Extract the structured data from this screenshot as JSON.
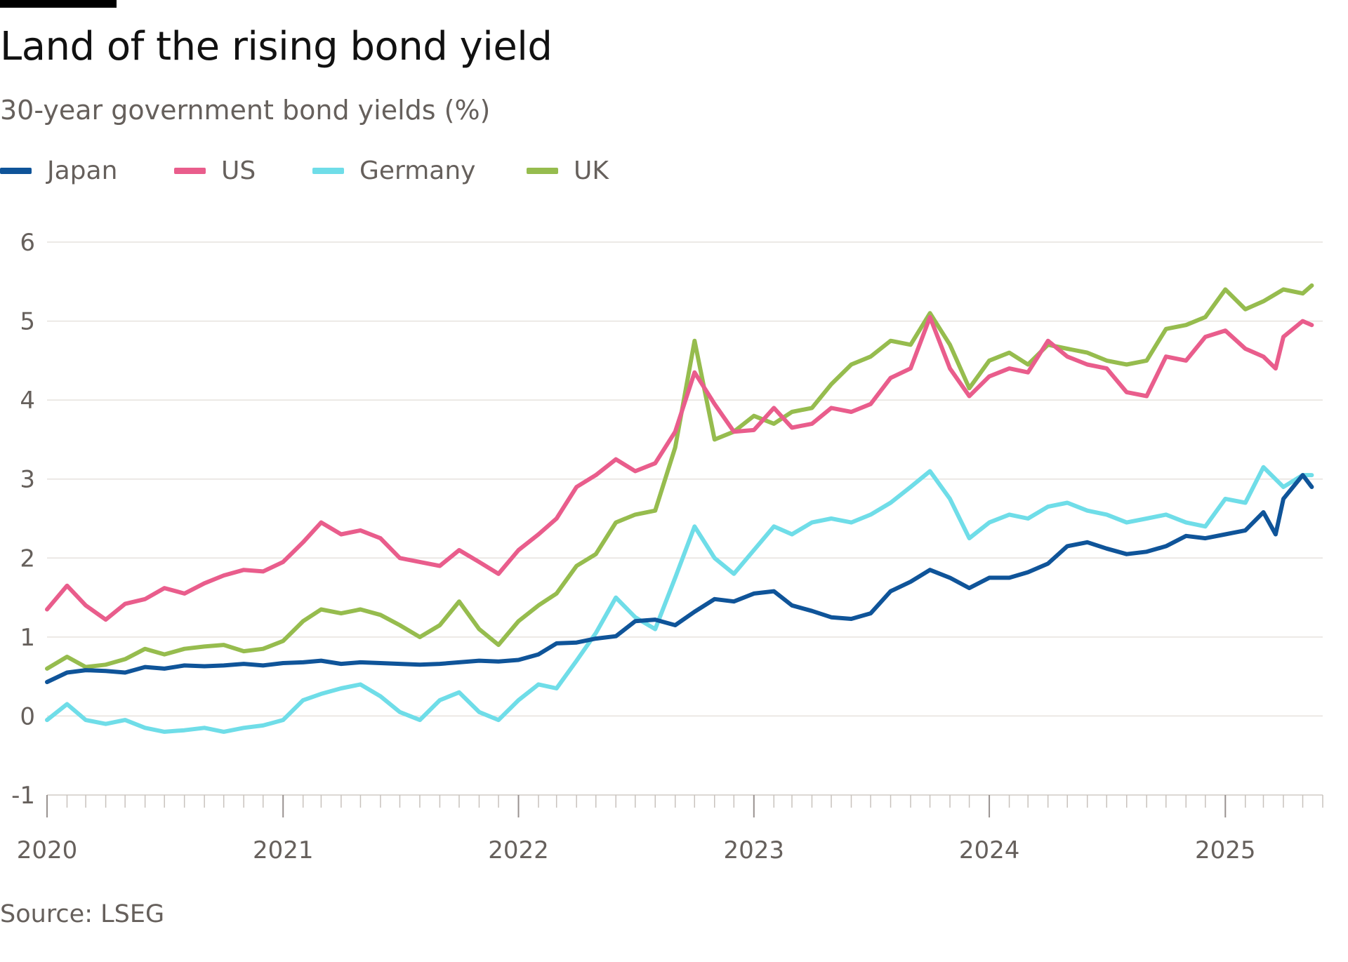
{
  "header": {
    "title": "Land of the rising bond yield",
    "subtitle": "30-year government bond yields (%)"
  },
  "legend": [
    {
      "label": "Japan",
      "color": "#0f5499"
    },
    {
      "label": "US",
      "color": "#e95d8c"
    },
    {
      "label": "Germany",
      "color": "#6fdde8"
    },
    {
      "label": "UK",
      "color": "#96bc4e"
    }
  ],
  "footer": {
    "source": "Source: LSEG"
  },
  "chart_data": {
    "type": "line",
    "title": "Land of the rising bond yield",
    "subtitle": "30-year government bond yields (%)",
    "xlabel": "",
    "ylabel": "",
    "x_range": [
      "2020-01-01",
      "2025-06-01"
    ],
    "x_ticks": [
      "2020",
      "2021",
      "2022",
      "2023",
      "2024",
      "2025"
    ],
    "ylim": [
      -1,
      6
    ],
    "y_ticks": [
      "-1",
      "0",
      "1",
      "2",
      "3",
      "4",
      "5",
      "6"
    ],
    "grid": true,
    "legend_position": "top-left",
    "series": [
      {
        "name": "Japan",
        "color": "#0f5499",
        "points": [
          [
            "2020-01-01",
            0.43
          ],
          [
            "2020-02-01",
            0.55
          ],
          [
            "2020-03-01",
            0.58
          ],
          [
            "2020-04-01",
            0.57
          ],
          [
            "2020-05-01",
            0.55
          ],
          [
            "2020-06-01",
            0.62
          ],
          [
            "2020-07-01",
            0.6
          ],
          [
            "2020-08-01",
            0.64
          ],
          [
            "2020-09-01",
            0.63
          ],
          [
            "2020-10-01",
            0.64
          ],
          [
            "2020-11-01",
            0.66
          ],
          [
            "2020-12-01",
            0.64
          ],
          [
            "2021-01-01",
            0.67
          ],
          [
            "2021-02-01",
            0.68
          ],
          [
            "2021-03-01",
            0.7
          ],
          [
            "2021-04-01",
            0.66
          ],
          [
            "2021-05-01",
            0.68
          ],
          [
            "2021-06-01",
            0.67
          ],
          [
            "2021-07-01",
            0.66
          ],
          [
            "2021-08-01",
            0.65
          ],
          [
            "2021-09-01",
            0.66
          ],
          [
            "2021-10-01",
            0.68
          ],
          [
            "2021-11-01",
            0.7
          ],
          [
            "2021-12-01",
            0.69
          ],
          [
            "2022-01-01",
            0.71
          ],
          [
            "2022-02-01",
            0.78
          ],
          [
            "2022-03-01",
            0.92
          ],
          [
            "2022-04-01",
            0.93
          ],
          [
            "2022-05-01",
            0.98
          ],
          [
            "2022-06-01",
            1.01
          ],
          [
            "2022-07-01",
            1.2
          ],
          [
            "2022-08-01",
            1.22
          ],
          [
            "2022-09-01",
            1.15
          ],
          [
            "2022-10-01",
            1.32
          ],
          [
            "2022-11-01",
            1.48
          ],
          [
            "2022-12-01",
            1.45
          ],
          [
            "2023-01-01",
            1.55
          ],
          [
            "2023-02-01",
            1.58
          ],
          [
            "2023-03-01",
            1.4
          ],
          [
            "2023-04-01",
            1.33
          ],
          [
            "2023-05-01",
            1.25
          ],
          [
            "2023-06-01",
            1.23
          ],
          [
            "2023-07-01",
            1.3
          ],
          [
            "2023-08-01",
            1.58
          ],
          [
            "2023-09-01",
            1.7
          ],
          [
            "2023-10-01",
            1.85
          ],
          [
            "2023-11-01",
            1.75
          ],
          [
            "2023-12-01",
            1.62
          ],
          [
            "2024-01-01",
            1.75
          ],
          [
            "2024-02-01",
            1.75
          ],
          [
            "2024-03-01",
            1.82
          ],
          [
            "2024-04-01",
            1.93
          ],
          [
            "2024-05-01",
            2.15
          ],
          [
            "2024-06-01",
            2.2
          ],
          [
            "2024-07-01",
            2.12
          ],
          [
            "2024-08-01",
            2.05
          ],
          [
            "2024-09-01",
            2.08
          ],
          [
            "2024-10-01",
            2.15
          ],
          [
            "2024-11-01",
            2.28
          ],
          [
            "2024-12-01",
            2.25
          ],
          [
            "2025-01-01",
            2.3
          ],
          [
            "2025-02-01",
            2.35
          ],
          [
            "2025-03-01",
            2.58
          ],
          [
            "2025-03-20",
            2.3
          ],
          [
            "2025-04-01",
            2.75
          ],
          [
            "2025-05-01",
            3.05
          ],
          [
            "2025-05-15",
            2.9
          ]
        ]
      },
      {
        "name": "US",
        "color": "#e95d8c",
        "points": [
          [
            "2020-01-01",
            1.35
          ],
          [
            "2020-02-01",
            1.65
          ],
          [
            "2020-03-01",
            1.4
          ],
          [
            "2020-04-01",
            1.22
          ],
          [
            "2020-05-01",
            1.42
          ],
          [
            "2020-06-01",
            1.48
          ],
          [
            "2020-07-01",
            1.62
          ],
          [
            "2020-08-01",
            1.55
          ],
          [
            "2020-09-01",
            1.68
          ],
          [
            "2020-10-01",
            1.78
          ],
          [
            "2020-11-01",
            1.85
          ],
          [
            "2020-12-01",
            1.83
          ],
          [
            "2021-01-01",
            1.95
          ],
          [
            "2021-02-01",
            2.2
          ],
          [
            "2021-03-01",
            2.45
          ],
          [
            "2021-04-01",
            2.3
          ],
          [
            "2021-05-01",
            2.35
          ],
          [
            "2021-06-01",
            2.25
          ],
          [
            "2021-07-01",
            2.0
          ],
          [
            "2021-08-01",
            1.95
          ],
          [
            "2021-09-01",
            1.9
          ],
          [
            "2021-10-01",
            2.1
          ],
          [
            "2021-11-01",
            1.95
          ],
          [
            "2021-12-01",
            1.8
          ],
          [
            "2022-01-01",
            2.1
          ],
          [
            "2022-02-01",
            2.3
          ],
          [
            "2022-03-01",
            2.5
          ],
          [
            "2022-04-01",
            2.9
          ],
          [
            "2022-05-01",
            3.05
          ],
          [
            "2022-06-01",
            3.25
          ],
          [
            "2022-07-01",
            3.1
          ],
          [
            "2022-08-01",
            3.2
          ],
          [
            "2022-09-01",
            3.6
          ],
          [
            "2022-10-01",
            4.35
          ],
          [
            "2022-11-01",
            3.95
          ],
          [
            "2022-12-01",
            3.6
          ],
          [
            "2023-01-01",
            3.62
          ],
          [
            "2023-02-01",
            3.9
          ],
          [
            "2023-03-01",
            3.65
          ],
          [
            "2023-04-01",
            3.7
          ],
          [
            "2023-05-01",
            3.9
          ],
          [
            "2023-06-01",
            3.85
          ],
          [
            "2023-07-01",
            3.95
          ],
          [
            "2023-08-01",
            4.28
          ],
          [
            "2023-09-01",
            4.4
          ],
          [
            "2023-10-01",
            5.05
          ],
          [
            "2023-11-01",
            4.4
          ],
          [
            "2023-12-01",
            4.05
          ],
          [
            "2024-01-01",
            4.3
          ],
          [
            "2024-02-01",
            4.4
          ],
          [
            "2024-03-01",
            4.35
          ],
          [
            "2024-04-01",
            4.75
          ],
          [
            "2024-05-01",
            4.55
          ],
          [
            "2024-06-01",
            4.45
          ],
          [
            "2024-07-01",
            4.4
          ],
          [
            "2024-08-01",
            4.1
          ],
          [
            "2024-09-01",
            4.05
          ],
          [
            "2024-10-01",
            4.55
          ],
          [
            "2024-11-01",
            4.5
          ],
          [
            "2024-12-01",
            4.8
          ],
          [
            "2025-01-01",
            4.88
          ],
          [
            "2025-02-01",
            4.65
          ],
          [
            "2025-03-01",
            4.55
          ],
          [
            "2025-03-20",
            4.4
          ],
          [
            "2025-04-01",
            4.8
          ],
          [
            "2025-05-01",
            5.0
          ],
          [
            "2025-05-15",
            4.95
          ]
        ]
      },
      {
        "name": "Germany",
        "color": "#6fdde8",
        "points": [
          [
            "2020-01-01",
            -0.05
          ],
          [
            "2020-02-01",
            0.15
          ],
          [
            "2020-03-01",
            -0.05
          ],
          [
            "2020-04-01",
            -0.1
          ],
          [
            "2020-05-01",
            -0.05
          ],
          [
            "2020-06-01",
            -0.15
          ],
          [
            "2020-07-01",
            -0.2
          ],
          [
            "2020-08-01",
            -0.18
          ],
          [
            "2020-09-01",
            -0.15
          ],
          [
            "2020-10-01",
            -0.2
          ],
          [
            "2020-11-01",
            -0.15
          ],
          [
            "2020-12-01",
            -0.12
          ],
          [
            "2021-01-01",
            -0.05
          ],
          [
            "2021-02-01",
            0.2
          ],
          [
            "2021-03-01",
            0.28
          ],
          [
            "2021-04-01",
            0.35
          ],
          [
            "2021-05-01",
            0.4
          ],
          [
            "2021-06-01",
            0.25
          ],
          [
            "2021-07-01",
            0.05
          ],
          [
            "2021-08-01",
            -0.05
          ],
          [
            "2021-09-01",
            0.2
          ],
          [
            "2021-10-01",
            0.3
          ],
          [
            "2021-11-01",
            0.05
          ],
          [
            "2021-12-01",
            -0.05
          ],
          [
            "2022-01-01",
            0.2
          ],
          [
            "2022-02-01",
            0.4
          ],
          [
            "2022-03-01",
            0.35
          ],
          [
            "2022-04-01",
            0.7
          ],
          [
            "2022-05-01",
            1.05
          ],
          [
            "2022-06-01",
            1.5
          ],
          [
            "2022-07-01",
            1.25
          ],
          [
            "2022-08-01",
            1.1
          ],
          [
            "2022-09-01",
            1.75
          ],
          [
            "2022-10-01",
            2.4
          ],
          [
            "2022-11-01",
            2.0
          ],
          [
            "2022-12-01",
            1.8
          ],
          [
            "2023-01-01",
            2.1
          ],
          [
            "2023-02-01",
            2.4
          ],
          [
            "2023-03-01",
            2.3
          ],
          [
            "2023-04-01",
            2.45
          ],
          [
            "2023-05-01",
            2.5
          ],
          [
            "2023-06-01",
            2.45
          ],
          [
            "2023-07-01",
            2.55
          ],
          [
            "2023-08-01",
            2.7
          ],
          [
            "2023-09-01",
            2.9
          ],
          [
            "2023-10-01",
            3.1
          ],
          [
            "2023-11-01",
            2.75
          ],
          [
            "2023-12-01",
            2.25
          ],
          [
            "2024-01-01",
            2.45
          ],
          [
            "2024-02-01",
            2.55
          ],
          [
            "2024-03-01",
            2.5
          ],
          [
            "2024-04-01",
            2.65
          ],
          [
            "2024-05-01",
            2.7
          ],
          [
            "2024-06-01",
            2.6
          ],
          [
            "2024-07-01",
            2.55
          ],
          [
            "2024-08-01",
            2.45
          ],
          [
            "2024-09-01",
            2.5
          ],
          [
            "2024-10-01",
            2.55
          ],
          [
            "2024-11-01",
            2.45
          ],
          [
            "2024-12-01",
            2.4
          ],
          [
            "2025-01-01",
            2.75
          ],
          [
            "2025-02-01",
            2.7
          ],
          [
            "2025-03-01",
            3.15
          ],
          [
            "2025-04-01",
            2.9
          ],
          [
            "2025-05-01",
            3.05
          ],
          [
            "2025-05-15",
            3.05
          ]
        ]
      },
      {
        "name": "UK",
        "color": "#96bc4e",
        "points": [
          [
            "2020-01-01",
            0.6
          ],
          [
            "2020-02-01",
            0.75
          ],
          [
            "2020-03-01",
            0.62
          ],
          [
            "2020-04-01",
            0.65
          ],
          [
            "2020-05-01",
            0.72
          ],
          [
            "2020-06-01",
            0.85
          ],
          [
            "2020-07-01",
            0.78
          ],
          [
            "2020-08-01",
            0.85
          ],
          [
            "2020-09-01",
            0.88
          ],
          [
            "2020-10-01",
            0.9
          ],
          [
            "2020-11-01",
            0.82
          ],
          [
            "2020-12-01",
            0.85
          ],
          [
            "2021-01-01",
            0.95
          ],
          [
            "2021-02-01",
            1.2
          ],
          [
            "2021-03-01",
            1.35
          ],
          [
            "2021-04-01",
            1.3
          ],
          [
            "2021-05-01",
            1.35
          ],
          [
            "2021-06-01",
            1.28
          ],
          [
            "2021-07-01",
            1.15
          ],
          [
            "2021-08-01",
            1.0
          ],
          [
            "2021-09-01",
            1.15
          ],
          [
            "2021-10-01",
            1.45
          ],
          [
            "2021-11-01",
            1.1
          ],
          [
            "2021-12-01",
            0.9
          ],
          [
            "2022-01-01",
            1.2
          ],
          [
            "2022-02-01",
            1.4
          ],
          [
            "2022-03-01",
            1.55
          ],
          [
            "2022-04-01",
            1.9
          ],
          [
            "2022-05-01",
            2.05
          ],
          [
            "2022-06-01",
            2.45
          ],
          [
            "2022-07-01",
            2.55
          ],
          [
            "2022-08-01",
            2.6
          ],
          [
            "2022-09-01",
            3.4
          ],
          [
            "2022-10-01",
            4.75
          ],
          [
            "2022-11-01",
            3.5
          ],
          [
            "2022-12-01",
            3.6
          ],
          [
            "2023-01-01",
            3.8
          ],
          [
            "2023-02-01",
            3.7
          ],
          [
            "2023-03-01",
            3.85
          ],
          [
            "2023-04-01",
            3.9
          ],
          [
            "2023-05-01",
            4.2
          ],
          [
            "2023-06-01",
            4.45
          ],
          [
            "2023-07-01",
            4.55
          ],
          [
            "2023-08-01",
            4.75
          ],
          [
            "2023-09-01",
            4.7
          ],
          [
            "2023-10-01",
            5.1
          ],
          [
            "2023-11-01",
            4.7
          ],
          [
            "2023-12-01",
            4.15
          ],
          [
            "2024-01-01",
            4.5
          ],
          [
            "2024-02-01",
            4.6
          ],
          [
            "2024-03-01",
            4.45
          ],
          [
            "2024-04-01",
            4.7
          ],
          [
            "2024-05-01",
            4.65
          ],
          [
            "2024-06-01",
            4.6
          ],
          [
            "2024-07-01",
            4.5
          ],
          [
            "2024-08-01",
            4.45
          ],
          [
            "2024-09-01",
            4.5
          ],
          [
            "2024-10-01",
            4.9
          ],
          [
            "2024-11-01",
            4.95
          ],
          [
            "2024-12-01",
            5.05
          ],
          [
            "2025-01-01",
            5.4
          ],
          [
            "2025-02-01",
            5.15
          ],
          [
            "2025-03-01",
            5.25
          ],
          [
            "2025-04-01",
            5.4
          ],
          [
            "2025-05-01",
            5.35
          ],
          [
            "2025-05-15",
            5.45
          ]
        ]
      }
    ]
  }
}
